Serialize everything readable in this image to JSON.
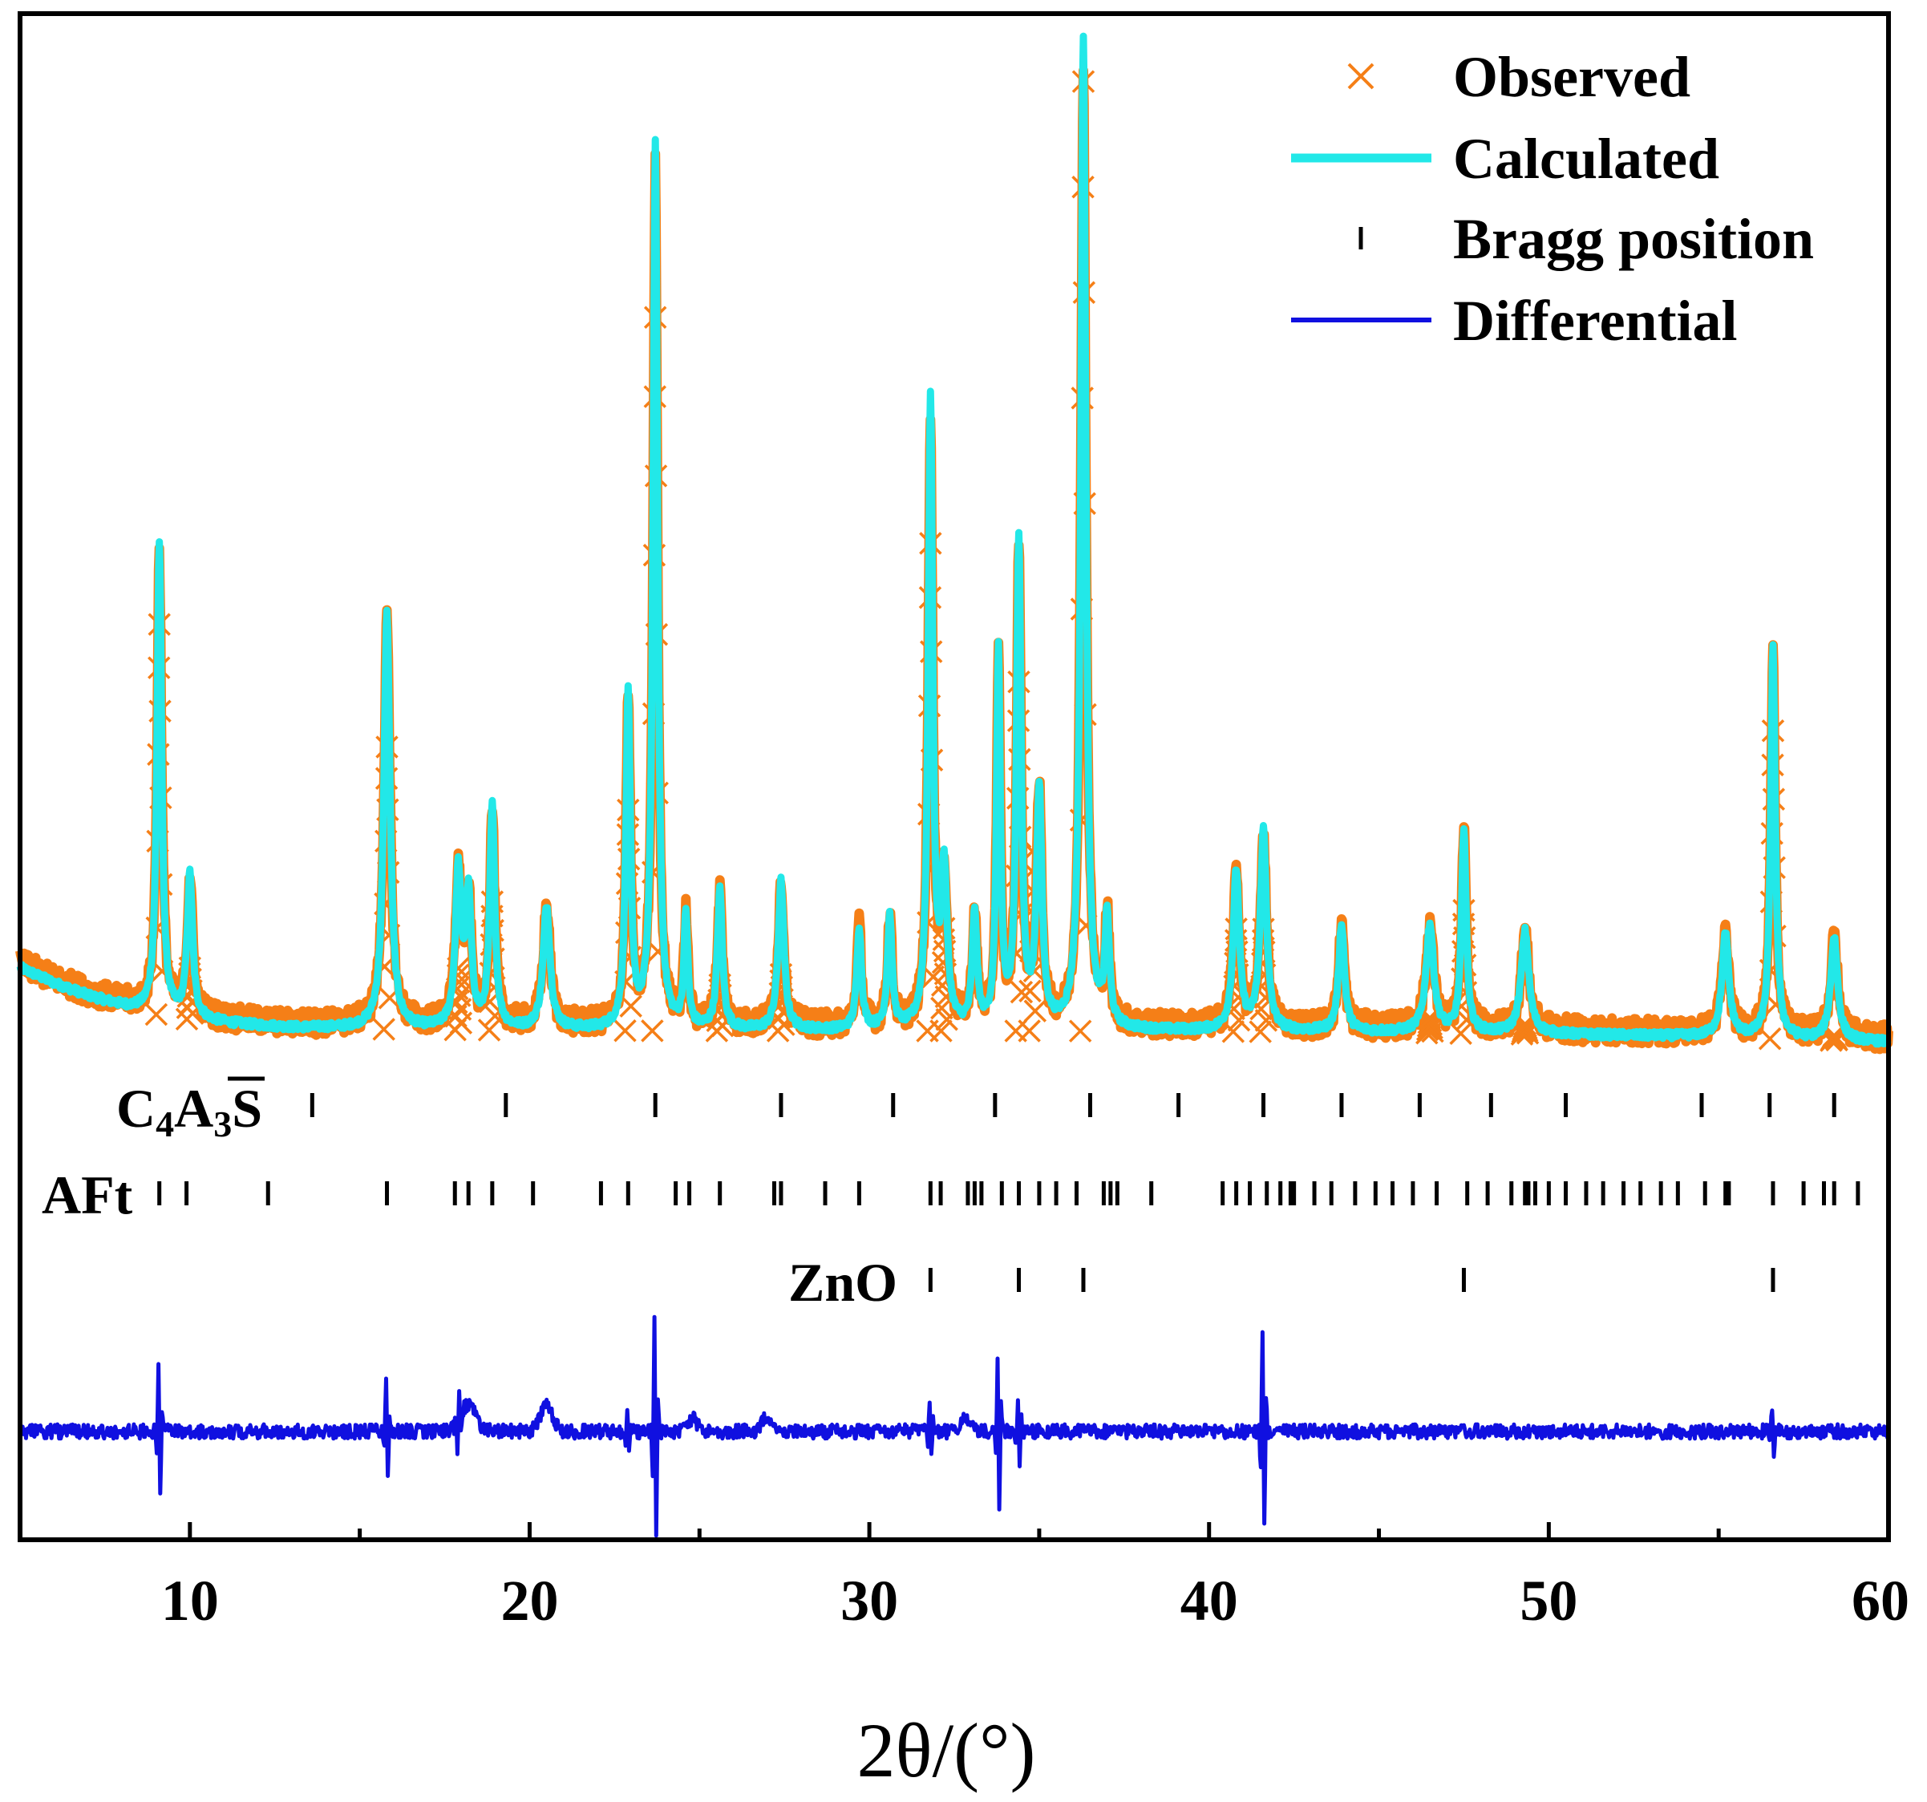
{
  "chart_data": {
    "type": "line",
    "xlabel": "2θ/(°)",
    "ylabel": "",
    "xlim": [
      5,
      60
    ],
    "ylim": [
      0,
      100
    ],
    "x_ticks": [
      10,
      20,
      30,
      40,
      50,
      60
    ],
    "grid": false,
    "legend_position": "top-right",
    "legend": [
      {
        "label": "Observed",
        "marker": "cross",
        "color": "#F57F17"
      },
      {
        "label": "Calculated",
        "marker": "line",
        "color": "#22E8E8"
      },
      {
        "label": "Bragg position",
        "marker": "tick",
        "color": "#000000"
      },
      {
        "label": "Differential",
        "marker": "line",
        "color": "#1010E0"
      }
    ],
    "series": [
      {
        "name": "Calculated",
        "color": "#22E8E8",
        "baseline": [
          [
            5.0,
            33
          ],
          [
            6.0,
            30
          ],
          [
            7.0,
            27.5
          ],
          [
            8.0,
            25.5
          ],
          [
            9.0,
            24
          ],
          [
            10.0,
            23
          ],
          [
            11.0,
            22.2
          ],
          [
            12.0,
            21.7
          ],
          [
            13.0,
            21.3
          ],
          [
            14.0,
            21.2
          ],
          [
            16.0,
            21.0
          ],
          [
            18.0,
            20.9
          ],
          [
            20.0,
            20.8
          ],
          [
            25.0,
            20.7
          ],
          [
            30.0,
            20.7
          ],
          [
            35.0,
            20.7
          ],
          [
            40.0,
            20.6
          ],
          [
            45.0,
            20.4
          ],
          [
            50.0,
            20.0
          ],
          [
            55.0,
            19.5
          ],
          [
            60.0,
            18.5
          ]
        ],
        "peaks": [
          {
            "x": 9.1,
            "height": 92,
            "width": 0.12
          },
          {
            "x": 10.0,
            "height": 28,
            "width": 0.14
          },
          {
            "x": 15.8,
            "height": 81,
            "width": 0.16
          },
          {
            "x": 17.9,
            "height": 30,
            "width": 0.15
          },
          {
            "x": 18.2,
            "height": 25,
            "width": 0.15
          },
          {
            "x": 18.9,
            "height": 43,
            "width": 0.13
          },
          {
            "x": 20.5,
            "height": 24,
            "width": 0.18
          },
          {
            "x": 22.9,
            "height": 65,
            "width": 0.12
          },
          {
            "x": 23.7,
            "height": 172,
            "width": 0.12
          },
          {
            "x": 24.6,
            "height": 22,
            "width": 0.1
          },
          {
            "x": 25.6,
            "height": 27,
            "width": 0.13
          },
          {
            "x": 27.4,
            "height": 29,
            "width": 0.15
          },
          {
            "x": 29.7,
            "height": 20,
            "width": 0.12
          },
          {
            "x": 30.6,
            "height": 22,
            "width": 0.12
          },
          {
            "x": 31.8,
            "height": 122,
            "width": 0.12
          },
          {
            "x": 32.2,
            "height": 30,
            "width": 0.15
          },
          {
            "x": 33.1,
            "height": 22,
            "width": 0.12
          },
          {
            "x": 33.8,
            "height": 73,
            "width": 0.1
          },
          {
            "x": 34.4,
            "height": 95,
            "width": 0.12
          },
          {
            "x": 35.0,
            "height": 46,
            "width": 0.14
          },
          {
            "x": 36.3,
            "height": 193,
            "width": 0.13
          },
          {
            "x": 37.0,
            "height": 21,
            "width": 0.12
          },
          {
            "x": 40.8,
            "height": 31,
            "width": 0.16
          },
          {
            "x": 41.6,
            "height": 39,
            "width": 0.16
          },
          {
            "x": 43.9,
            "height": 21,
            "width": 0.15
          },
          {
            "x": 46.5,
            "height": 21,
            "width": 0.2
          },
          {
            "x": 47.5,
            "height": 40,
            "width": 0.12
          },
          {
            "x": 49.3,
            "height": 20,
            "width": 0.2
          },
          {
            "x": 55.2,
            "height": 20,
            "width": 0.18
          },
          {
            "x": 56.6,
            "height": 76,
            "width": 0.12
          },
          {
            "x": 58.4,
            "height": 20,
            "width": 0.18
          }
        ]
      },
      {
        "name": "Observed",
        "color": "#F57F17",
        "marker": "cross",
        "peak_tops": [
          [
            9.1,
            96
          ],
          [
            10.0,
            30
          ],
          [
            15.8,
            75
          ],
          [
            17.9,
            32
          ],
          [
            18.9,
            45
          ],
          [
            22.9,
            63
          ],
          [
            23.7,
            159
          ],
          [
            25.6,
            29
          ],
          [
            27.4,
            31
          ],
          [
            31.8,
            115
          ],
          [
            32.2,
            40
          ],
          [
            34.4,
            88
          ],
          [
            34.8,
            55
          ],
          [
            36.3,
            205
          ],
          [
            40.8,
            40
          ],
          [
            41.6,
            40
          ],
          [
            46.5,
            23
          ],
          [
            47.5,
            44
          ],
          [
            49.3,
            22
          ],
          [
            56.6,
            80
          ],
          [
            58.4,
            21
          ]
        ]
      },
      {
        "name": "Differential",
        "color": "#1010E0",
        "offset": -38
      }
    ],
    "bragg_positions": [
      {
        "phase": "C4A3S",
        "label_parts": {
          "main": "C",
          "sub1": "4",
          "mid": "A",
          "sub2": "3",
          "over": "S"
        },
        "positions": [
          13.6,
          19.3,
          23.7,
          27.4,
          30.7,
          33.7,
          36.5,
          39.1,
          41.6,
          43.9,
          46.2,
          48.3,
          50.5,
          54.5,
          56.5,
          58.4
        ]
      },
      {
        "phase": "AFt",
        "label": "AFt",
        "positions": [
          9.1,
          9.9,
          12.3,
          15.8,
          17.8,
          18.2,
          18.9,
          20.1,
          22.1,
          22.9,
          24.3,
          24.7,
          25.6,
          27.2,
          27.4,
          28.7,
          29.7,
          31.8,
          32.1,
          32.9,
          33.1,
          33.3,
          33.9,
          34.4,
          35.0,
          35.5,
          36.1,
          36.9,
          37.1,
          37.3,
          38.3,
          40.4,
          40.8,
          41.2,
          41.7,
          42.1,
          42.4,
          42.5,
          43.1,
          43.6,
          44.3,
          44.9,
          45.4,
          46.0,
          46.7,
          47.6,
          48.2,
          48.9,
          49.3,
          49.4,
          49.6,
          50.0,
          50.5,
          51.1,
          51.6,
          52.2,
          52.7,
          53.3,
          53.8,
          54.6,
          55.2,
          55.3,
          56.6,
          57.5,
          58.1,
          58.4,
          59.1
        ]
      },
      {
        "phase": "ZnO",
        "label": "ZnO",
        "positions": [
          31.8,
          34.4,
          36.3,
          47.5,
          56.6
        ]
      }
    ]
  }
}
